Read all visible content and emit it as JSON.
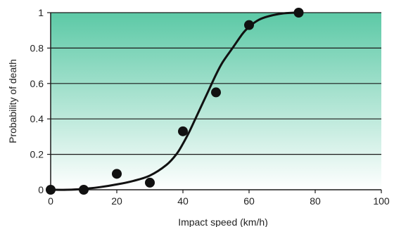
{
  "chart_data": {
    "type": "scatter",
    "xlabel": "Impact speed (km/h)",
    "ylabel": "Probability of death",
    "xlim": [
      0,
      100
    ],
    "ylim": [
      0,
      1
    ],
    "x_ticks": [
      0,
      20,
      40,
      60,
      80,
      100
    ],
    "y_ticks": [
      0,
      0.2,
      0.4,
      0.6,
      0.8,
      1
    ],
    "y_tick_labels": [
      "0",
      "0.2",
      "0.4",
      "0.6",
      "0.8",
      "1"
    ],
    "grid": "horizontal",
    "background_gradient": [
      "#5cc9a6",
      "#ffffff"
    ],
    "series": [
      {
        "kind": "points",
        "x": [
          0,
          10,
          20,
          30,
          40,
          50,
          60,
          75
        ],
        "y": [
          0.0,
          0.0,
          0.09,
          0.04,
          0.33,
          0.55,
          0.93,
          1.0
        ]
      },
      {
        "kind": "fitted-curve",
        "x": [
          0,
          5,
          10,
          15,
          20,
          25,
          30,
          35,
          38,
          40,
          42,
          44,
          46,
          48,
          50,
          52,
          55,
          58,
          60,
          63,
          66,
          70,
          74
        ],
        "y": [
          0.0,
          0.0,
          0.005,
          0.015,
          0.03,
          0.05,
          0.08,
          0.14,
          0.2,
          0.26,
          0.33,
          0.41,
          0.49,
          0.57,
          0.65,
          0.72,
          0.8,
          0.88,
          0.92,
          0.96,
          0.98,
          0.995,
          1.0
        ]
      }
    ]
  }
}
